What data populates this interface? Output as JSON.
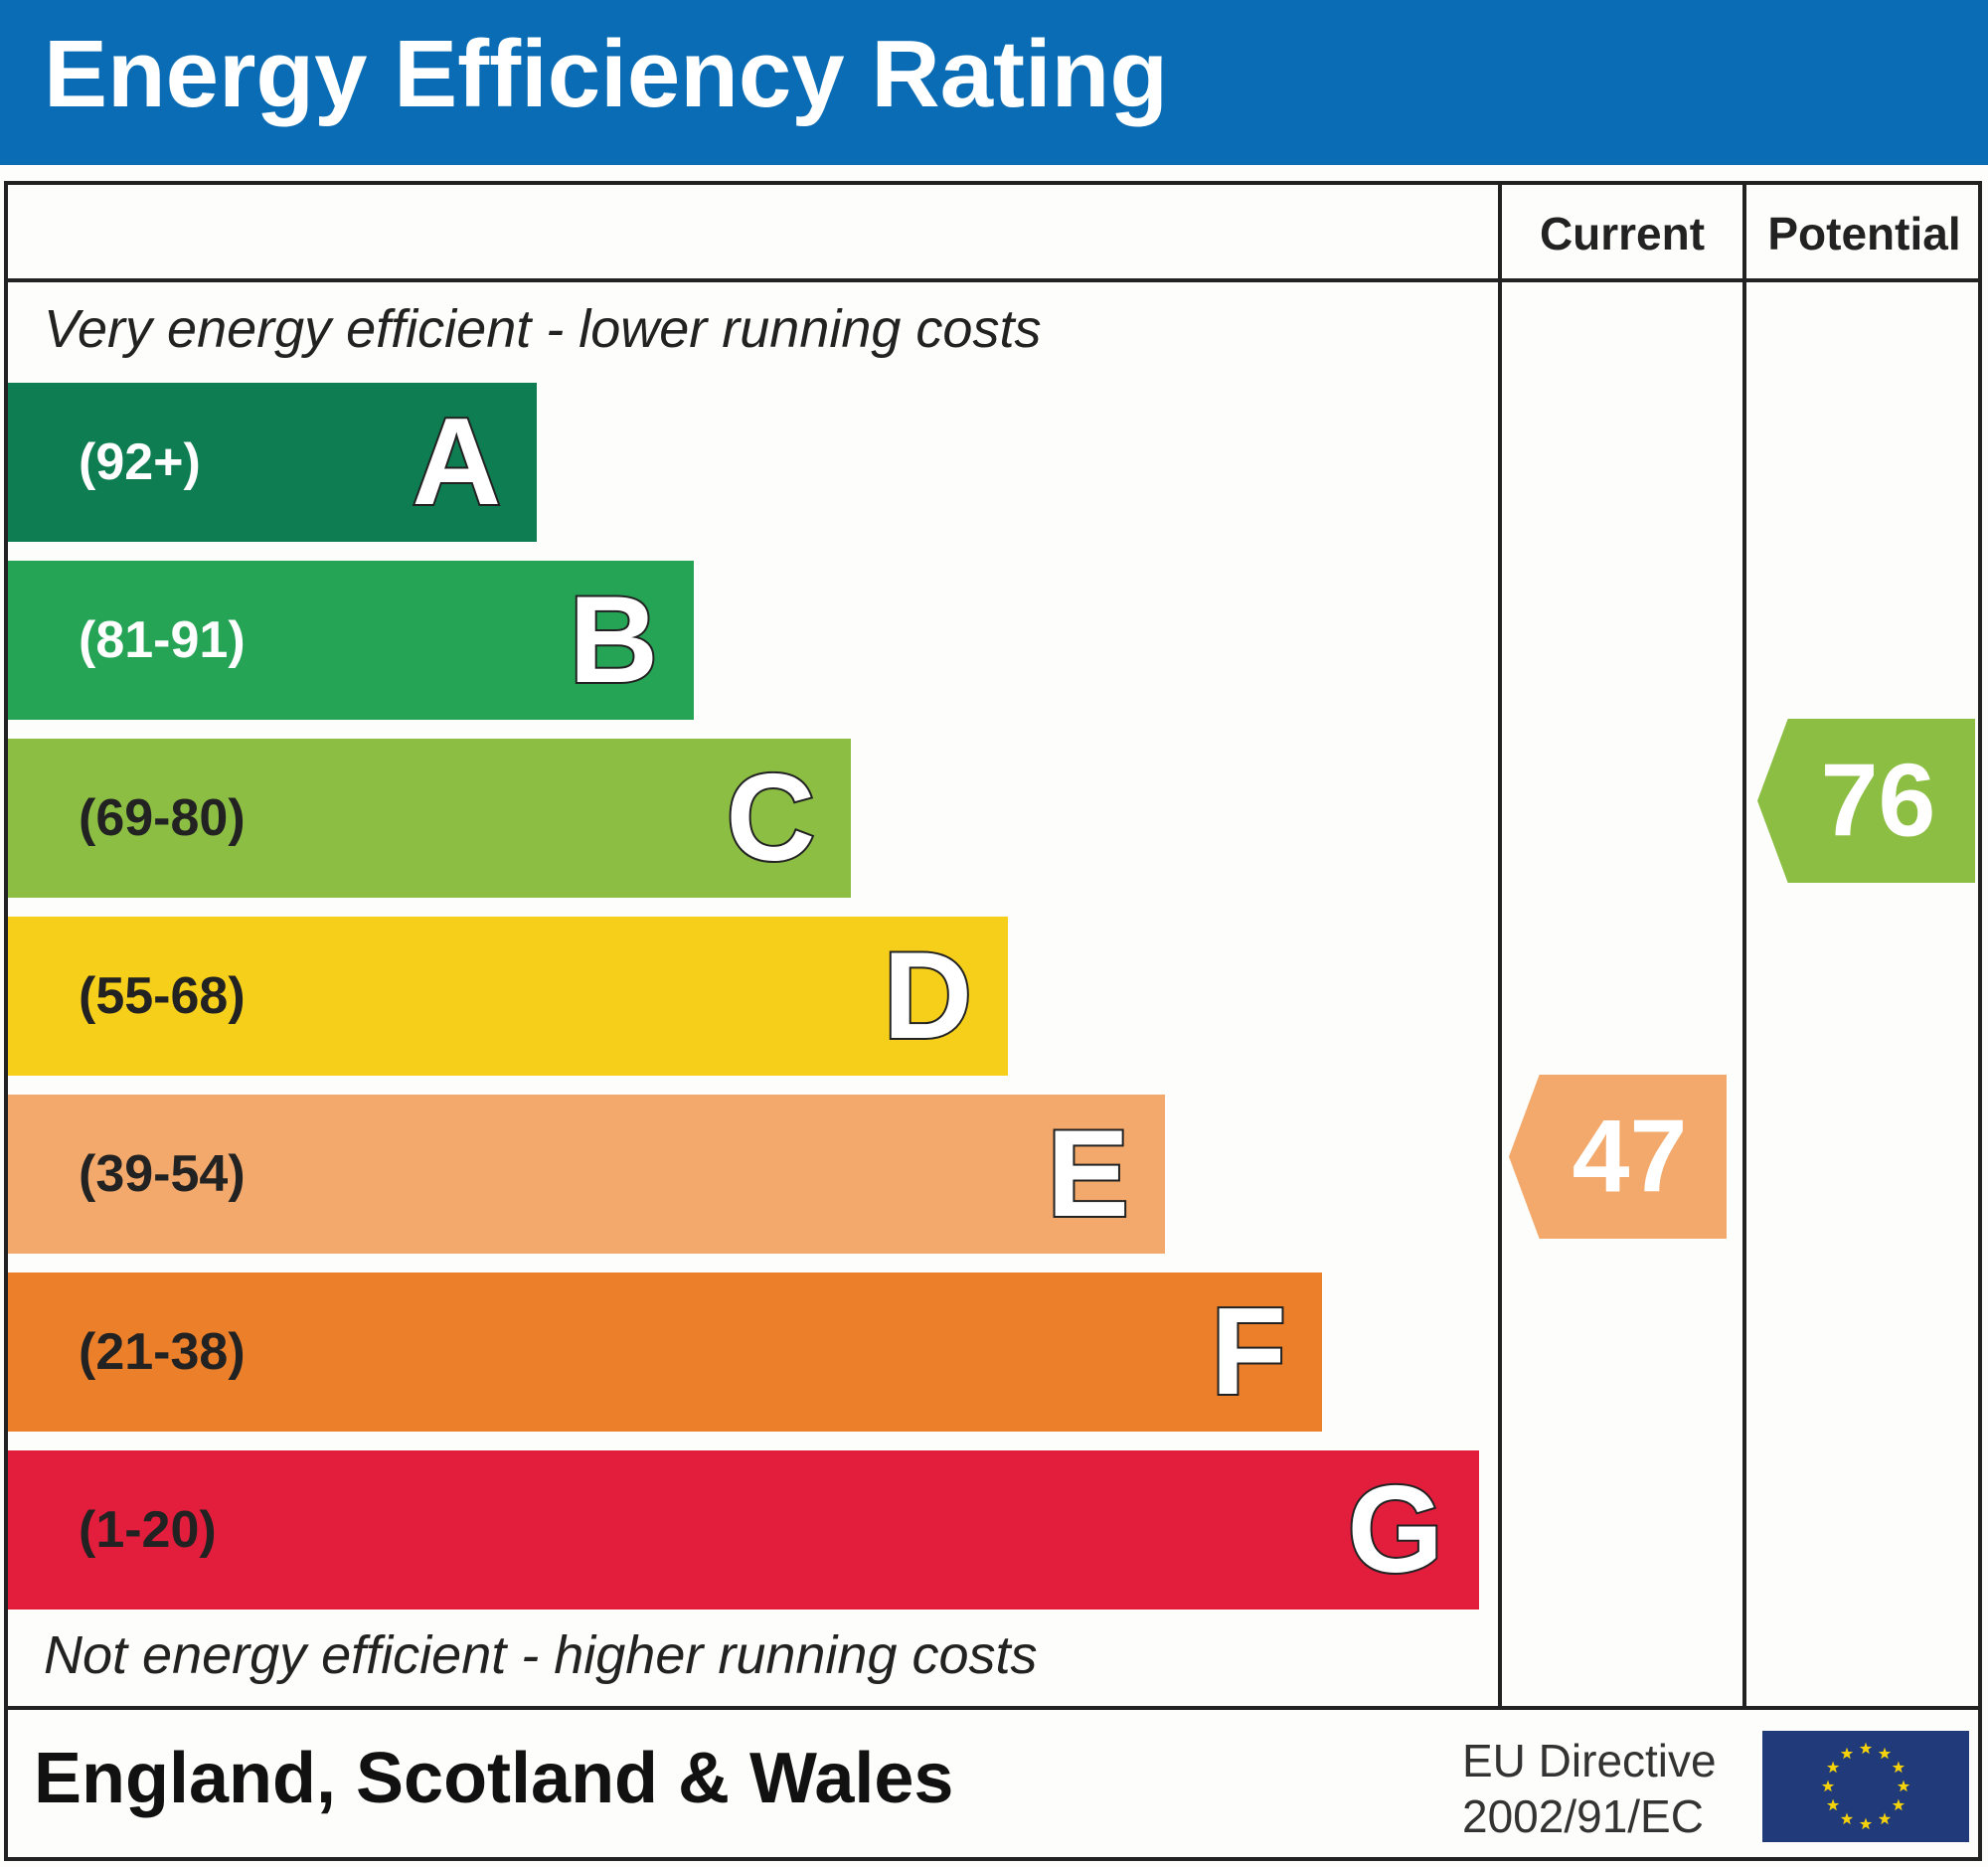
{
  "title": "Energy Efficiency Rating",
  "columns": {
    "current": "Current",
    "potential": "Potential"
  },
  "top_note": "Very energy efficient - lower running costs",
  "bottom_note": "Not energy efficient - higher running costs",
  "footer": {
    "region": "England, Scotland & Wales",
    "directive_line1": "EU Directive",
    "directive_line2": "2002/91/EC",
    "flag_icon": "eu-flag-icon"
  },
  "colors": {
    "header": "#0a6cb4"
  },
  "chart_data": {
    "type": "bar",
    "title": "Energy Efficiency Rating",
    "bands": [
      {
        "letter": "A",
        "range": "(92+)",
        "color": "#0f7d52",
        "range_text_color": "#ffffff"
      },
      {
        "letter": "B",
        "range": "(81-91)",
        "color": "#25a455",
        "range_text_color": "#ffffff"
      },
      {
        "letter": "C",
        "range": "(69-80)",
        "color": "#8cbe44",
        "range_text_color": "#222222"
      },
      {
        "letter": "D",
        "range": "(55-68)",
        "color": "#f6cf1b",
        "range_text_color": "#222222"
      },
      {
        "letter": "E",
        "range": "(39-54)",
        "color": "#f2a96b",
        "range_text_color": "#222222"
      },
      {
        "letter": "F",
        "range": "(21-38)",
        "color": "#eb7f2a",
        "range_text_color": "#222222"
      },
      {
        "letter": "G",
        "range": "(1-20)",
        "color": "#e31d3c",
        "range_text_color": "#222222"
      }
    ],
    "current": {
      "value": 47,
      "band": "E",
      "color": "#f2a96b"
    },
    "potential": {
      "value": 76,
      "band": "C",
      "color": "#8cbe44"
    }
  }
}
